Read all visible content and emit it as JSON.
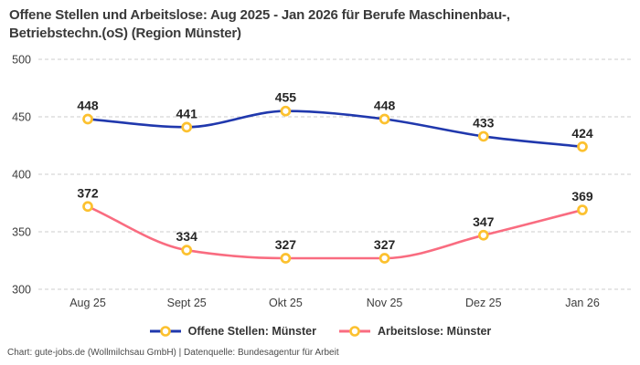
{
  "title": "Offene Stellen und Arbeitslose: Aug 2025 - Jan 2026 für Berufe Maschinenbau-, Betriebstechn.(oS) (Region Münster)",
  "footer": "Chart: gute-jobs.de (Wollmilchsau GmbH) | Datenquelle: Bundesagentur für Arbeit",
  "colors": {
    "open_positions_line": "#2038ad",
    "unemployed_line": "#f96c80",
    "marker_ring": "#fcc12f",
    "marker_fill": "#ffffff",
    "gridline": "#cccccc"
  },
  "chart_data": {
    "type": "line",
    "categories": [
      "Aug 25",
      "Sept 25",
      "Okt 25",
      "Nov 25",
      "Dez 25",
      "Jan 26"
    ],
    "series": [
      {
        "name": "Offene Stellen: Münster",
        "values": [
          448,
          441,
          455,
          448,
          433,
          424
        ],
        "color": "#2038ad"
      },
      {
        "name": "Arbeitslose: Münster",
        "values": [
          372,
          334,
          327,
          327,
          347,
          369
        ],
        "color": "#f96c80"
      }
    ],
    "title": "Offene Stellen und Arbeitslose: Aug 2025 - Jan 2026 für Berufe Maschinenbau-, Betriebstechn.(oS) (Region Münster)",
    "xlabel": "",
    "ylabel": "",
    "y_ticks": [
      500,
      450,
      400,
      350,
      300
    ],
    "ylim": [
      300,
      500
    ],
    "grid": "horizontal-dashed",
    "legend_position": "bottom",
    "value_labels": true,
    "curve": "monotone"
  }
}
